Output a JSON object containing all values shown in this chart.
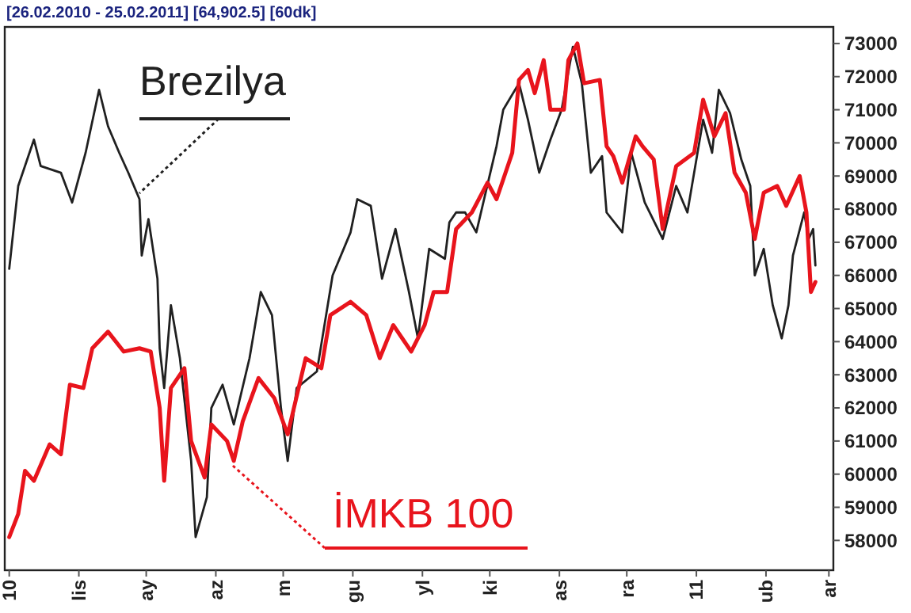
{
  "chart_data": {
    "type": "line",
    "title": "[26.02.2010 - 25.02.2011] [64,902.5] [60dk]",
    "x": [
      "2010-03-01",
      "2010-03-05",
      "2010-03-12",
      "2010-03-15",
      "2010-03-24",
      "2010-03-29",
      "2010-04-04",
      "2010-04-10",
      "2010-04-14",
      "2010-04-19",
      "2010-04-23",
      "2010-04-28",
      "2010-04-29",
      "2010-05-02",
      "2010-05-06",
      "2010-05-07",
      "2010-05-09",
      "2010-05-12",
      "2010-05-16",
      "2010-05-21",
      "2010-05-23",
      "2010-05-28",
      "2010-05-30",
      "2010-06-04",
      "2010-06-09",
      "2010-06-16",
      "2010-06-21",
      "2010-06-26",
      "2010-06-30",
      "2010-07-03",
      "2010-07-07",
      "2010-07-16",
      "2010-07-23",
      "2010-07-31",
      "2010-08-03",
      "2010-08-09",
      "2010-08-14",
      "2010-08-20",
      "2010-08-26",
      "2010-08-30",
      "2010-09-04",
      "2010-09-11",
      "2010-09-13",
      "2010-09-16",
      "2010-09-20",
      "2010-09-25",
      "2010-10-04",
      "2010-10-07",
      "2010-10-14",
      "2010-10-18",
      "2010-10-23",
      "2010-10-28",
      "2010-11-02",
      "2010-11-07",
      "2010-11-11",
      "2010-11-15",
      "2010-11-20",
      "2010-11-22",
      "2010-11-29",
      "2010-12-03",
      "2010-12-09",
      "2010-12-17",
      "2010-12-23",
      "2010-12-28",
      "2011-01-04",
      "2011-01-08",
      "2011-01-11",
      "2011-01-16",
      "2011-01-21",
      "2011-01-25",
      "2011-01-27",
      "2011-01-31",
      "2011-02-04",
      "2011-02-08",
      "2011-02-11",
      "2011-02-13",
      "2011-02-18",
      "2011-02-20",
      "2011-02-22",
      "2011-02-23"
    ],
    "series": [
      {
        "name": "Brezilya",
        "color": "#202020",
        "values": [
          66200,
          68700,
          70100,
          69300,
          69100,
          68200,
          69700,
          71600,
          70500,
          69700,
          69100,
          68300,
          66600,
          67700,
          65900,
          63800,
          62600,
          65100,
          63500,
          60400,
          58100,
          59300,
          62000,
          62700,
          61500,
          63500,
          65500,
          64800,
          62000,
          60400,
          62600,
          63100,
          66000,
          67300,
          68300,
          68100,
          65900,
          67400,
          65500,
          64100,
          66800,
          66500,
          67600,
          67900,
          67900,
          67300,
          69900,
          71000,
          71800,
          70700,
          69100,
          70100,
          71000,
          72900,
          71800,
          69100,
          69600,
          67900,
          67300,
          69700,
          68200,
          67100,
          68700,
          67900,
          70700,
          69700,
          71600,
          70900,
          69500,
          68700,
          66000,
          66800,
          65100,
          64100,
          65100,
          66600,
          67900,
          67100,
          67400,
          66300
        ]
      },
      {
        "name": "İMKB 100",
        "color": "#e8141c",
        "x": [
          "2010-03-01",
          "2010-03-05",
          "2010-03-08",
          "2010-03-12",
          "2010-03-19",
          "2010-03-24",
          "2010-03-28",
          "2010-04-03",
          "2010-04-07",
          "2010-04-14",
          "2010-04-21",
          "2010-04-28",
          "2010-05-03",
          "2010-05-07",
          "2010-05-09",
          "2010-05-12",
          "2010-05-18",
          "2010-05-21",
          "2010-05-27",
          "2010-05-30",
          "2010-06-06",
          "2010-06-09",
          "2010-06-13",
          "2010-06-20",
          "2010-06-27",
          "2010-07-03",
          "2010-07-11",
          "2010-07-18",
          "2010-07-22",
          "2010-07-31",
          "2010-08-07",
          "2010-08-13",
          "2010-08-19",
          "2010-08-27",
          "2010-09-02",
          "2010-09-06",
          "2010-09-12",
          "2010-09-16",
          "2010-09-23",
          "2010-09-30",
          "2010-10-04",
          "2010-10-11",
          "2010-10-14",
          "2010-10-18",
          "2010-10-21",
          "2010-10-25",
          "2010-10-28",
          "2010-11-03",
          "2010-11-05",
          "2010-11-09",
          "2010-11-12",
          "2010-11-19",
          "2010-11-22",
          "2010-11-25",
          "2010-11-29",
          "2010-12-05",
          "2010-12-08",
          "2010-12-13",
          "2010-12-17",
          "2010-12-23",
          "2010-12-31",
          "2011-01-04",
          "2011-01-09",
          "2011-01-14",
          "2011-01-18",
          "2011-01-23",
          "2011-01-27",
          "2011-01-31",
          "2011-02-06",
          "2011-02-10",
          "2011-02-16",
          "2011-02-19",
          "2011-02-21",
          "2011-02-23"
        ],
        "values": [
          58100,
          58800,
          60100,
          59800,
          60900,
          60600,
          62700,
          62600,
          63800,
          64300,
          63700,
          63800,
          63700,
          62000,
          59800,
          62600,
          63200,
          61000,
          59900,
          61500,
          61000,
          60400,
          61600,
          62900,
          62300,
          61200,
          63500,
          63200,
          64800,
          65200,
          64800,
          63500,
          64500,
          63700,
          64500,
          65500,
          65500,
          67400,
          67900,
          68800,
          68300,
          69700,
          71900,
          72200,
          71500,
          72500,
          71000,
          71000,
          72500,
          73000,
          71800,
          71900,
          69900,
          69600,
          68800,
          70200,
          69900,
          69500,
          67400,
          69300,
          69700,
          71300,
          70200,
          70900,
          69100,
          68500,
          67100,
          68500,
          68700,
          68100,
          69000,
          67900,
          65500,
          65800
        ]
      }
    ],
    "xlim": [
      "2010-02-27",
      "2011-03-03"
    ],
    "xticks": [
      {
        "value": "2010-03-01",
        "label": "10"
      },
      {
        "value": "2010-04-01",
        "label": "lis"
      },
      {
        "value": "2010-05-01",
        "label": "ay"
      },
      {
        "value": "2010-06-01",
        "label": "az"
      },
      {
        "value": "2010-07-01",
        "label": "m"
      },
      {
        "value": "2010-08-01",
        "label": "gu"
      },
      {
        "value": "2010-09-01",
        "label": "yl"
      },
      {
        "value": "2010-10-01",
        "label": "ki"
      },
      {
        "value": "2010-11-01",
        "label": "as"
      },
      {
        "value": "2010-12-01",
        "label": "ra"
      },
      {
        "value": "2011-01-01",
        "label": "11"
      },
      {
        "value": "2011-02-01",
        "label": "ub"
      },
      {
        "value": "2011-03-01",
        "label": "ar"
      }
    ],
    "ylim": [
      57100,
      73500
    ],
    "yticks": [
      58000,
      59000,
      60000,
      61000,
      62000,
      63000,
      64000,
      65000,
      66000,
      67000,
      68000,
      69000,
      70000,
      71000,
      72000,
      73000
    ]
  }
}
